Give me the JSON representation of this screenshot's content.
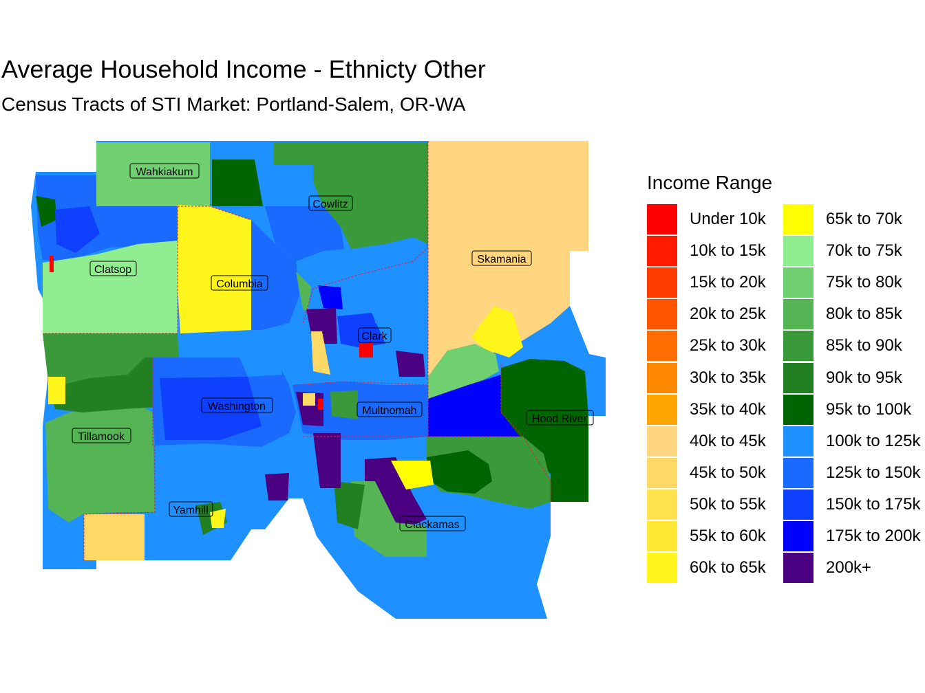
{
  "title": "Average Household Income - Ethnicty Other",
  "subtitle": "Census Tracts of STI Market: Portland-Salem, OR-WA",
  "legend": {
    "title": "Income Range",
    "items": [
      {
        "label": "Under 10k",
        "color": "#ff0000"
      },
      {
        "label": "10k to 15k",
        "color": "#ff1a00"
      },
      {
        "label": "15k to 20k",
        "color": "#ff3b00"
      },
      {
        "label": "20k to 25k",
        "color": "#ff5500"
      },
      {
        "label": "25k to 30k",
        "color": "#ff6d00"
      },
      {
        "label": "30k to 35k",
        "color": "#ff8800"
      },
      {
        "label": "35k to 40k",
        "color": "#ffa500"
      },
      {
        "label": "40k to 45k",
        "color": "#ffd580"
      },
      {
        "label": "45k to 50k",
        "color": "#ffd966"
      },
      {
        "label": "50k to 55k",
        "color": "#ffe14d"
      },
      {
        "label": "55k to 60k",
        "color": "#ffe833"
      },
      {
        "label": "60k to 65k",
        "color": "#fff51a"
      },
      {
        "label": "65k to 70k",
        "color": "#ffff00"
      },
      {
        "label": "70k to 75k",
        "color": "#90ee90"
      },
      {
        "label": "75k to 80k",
        "color": "#70d070"
      },
      {
        "label": "80k to 85k",
        "color": "#55b555"
      },
      {
        "label": "85k to 90k",
        "color": "#3a9a3a"
      },
      {
        "label": "90k to 95k",
        "color": "#228022"
      },
      {
        "label": "95k to 100k",
        "color": "#006400"
      },
      {
        "label": "100k to 125k",
        "color": "#1e90ff"
      },
      {
        "label": "125k to 150k",
        "color": "#1a6aff"
      },
      {
        "label": "150k to 175k",
        "color": "#1040ff"
      },
      {
        "label": "175k to 200k",
        "color": "#0000ff"
      },
      {
        "label": "200k+",
        "color": "#4b0082"
      }
    ]
  },
  "counties": [
    {
      "name": "Wahkiakum",
      "income_range": "75k to 80k"
    },
    {
      "name": "Cowlitz",
      "income_range": "85k to 90k"
    },
    {
      "name": "Skamania",
      "income_range": "40k to 45k"
    },
    {
      "name": "Clatsop",
      "income_range": "70k to 75k"
    },
    {
      "name": "Columbia",
      "income_range": "65k to 70k"
    },
    {
      "name": "Clark",
      "income_range": "125k to 150k"
    },
    {
      "name": "Washington",
      "income_range": "150k to 175k"
    },
    {
      "name": "Multnomah",
      "income_range": "125k to 150k"
    },
    {
      "name": "Hood River",
      "income_range": "95k to 100k"
    },
    {
      "name": "Tillamook",
      "income_range": "80k to 85k"
    },
    {
      "name": "Yamhill",
      "income_range": "100k to 125k"
    },
    {
      "name": "Clackamas",
      "income_range": "100k to 125k"
    }
  ]
}
